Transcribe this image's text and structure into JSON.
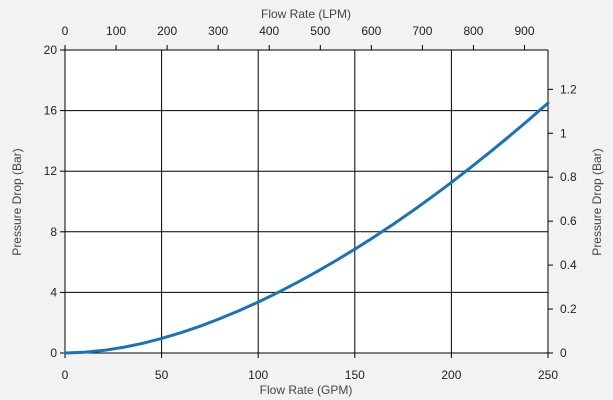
{
  "chart_data": {
    "type": "line",
    "title": "",
    "xlabel": "Flow Rate (GPM)",
    "xlabel_top": "Flow Rate (LPM)",
    "ylabel": "Pressure Drop (Bar)",
    "ylabel_right": "Pressure Drop (Bar)",
    "xlim": [
      0,
      250
    ],
    "ylim": [
      0,
      20
    ],
    "xlim_top": [
      0,
      946
    ],
    "ylim_right": [
      0,
      1.379
    ],
    "x_ticks": [
      0,
      50,
      100,
      150,
      200,
      250
    ],
    "y_ticks": [
      0,
      4,
      8,
      12,
      16,
      20
    ],
    "x_ticks_top": [
      0,
      100,
      200,
      300,
      400,
      500,
      600,
      700,
      800,
      900
    ],
    "y_ticks_right": [
      0,
      0.2,
      0.4,
      0.6,
      0.8,
      1,
      1.2
    ],
    "x_tick_labels": [
      "0",
      "50",
      "100",
      "150",
      "200",
      "250"
    ],
    "y_tick_labels": [
      "0",
      "4",
      "8",
      "12",
      "16",
      "20"
    ],
    "x_tick_labels_top": [
      "0",
      "100",
      "200",
      "300",
      "400",
      "500",
      "600",
      "700",
      "800",
      "900"
    ],
    "y_tick_labels_right": [
      "0",
      "0.2",
      "0.4",
      "0.6",
      "0.8",
      "1",
      "1.2"
    ],
    "grid": true,
    "series": [
      {
        "color": "#1a73b8",
        "x": [
          0,
          10,
          20,
          30,
          40,
          50,
          60,
          70,
          80,
          90,
          100,
          110,
          120,
          130,
          140,
          150,
          160,
          170,
          180,
          190,
          200,
          210,
          220,
          230,
          240,
          250
        ],
        "y": [
          0.0,
          0.05,
          0.17,
          0.37,
          0.63,
          0.96,
          1.34,
          1.77,
          2.26,
          2.79,
          3.36,
          3.98,
          4.64,
          5.34,
          6.08,
          6.85,
          7.66,
          8.51,
          9.39,
          10.31,
          11.26,
          12.25,
          13.26,
          14.31,
          15.39,
          16.5
        ]
      }
    ]
  }
}
